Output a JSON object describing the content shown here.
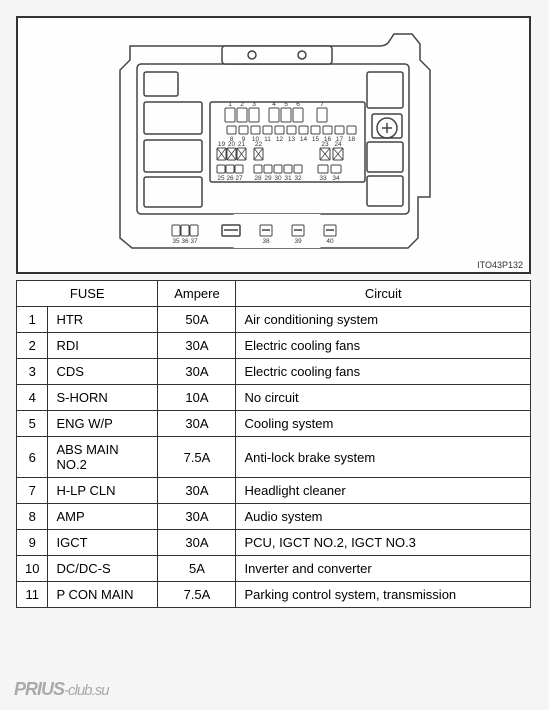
{
  "diagram_code": "ITO43P132",
  "table": {
    "headers": {
      "fuse": "FUSE",
      "ampere": "Ampere",
      "circuit": "Circuit"
    },
    "rows": [
      {
        "n": "1",
        "fuse": "HTR",
        "amp": "50A",
        "circ": "Air conditioning system"
      },
      {
        "n": "2",
        "fuse": "RDI",
        "amp": "30A",
        "circ": "Electric cooling fans"
      },
      {
        "n": "3",
        "fuse": "CDS",
        "amp": "30A",
        "circ": "Electric cooling fans"
      },
      {
        "n": "4",
        "fuse": "S-HORN",
        "amp": "10A",
        "circ": "No circuit"
      },
      {
        "n": "5",
        "fuse": "ENG W/P",
        "amp": "30A",
        "circ": "Cooling system"
      },
      {
        "n": "6",
        "fuse": "ABS MAIN NO.2",
        "amp": "7.5A",
        "circ": "Anti-lock brake system"
      },
      {
        "n": "7",
        "fuse": "H-LP CLN",
        "amp": "30A",
        "circ": "Headlight cleaner"
      },
      {
        "n": "8",
        "fuse": "AMP",
        "amp": "30A",
        "circ": "Audio system"
      },
      {
        "n": "9",
        "fuse": "IGCT",
        "amp": "30A",
        "circ": "PCU, IGCT NO.2, IGCT NO.3"
      },
      {
        "n": "10",
        "fuse": "DC/DC-S",
        "amp": "5A",
        "circ": "Inverter and converter"
      },
      {
        "n": "11",
        "fuse": "P CON MAIN",
        "amp": "7.5A",
        "circ": "Parking control system, transmission"
      }
    ]
  },
  "watermark": {
    "brand": "PRIUS",
    "suffix": "-club.su"
  },
  "diagram_labels": {
    "row1": [
      "1",
      "2",
      "3",
      "4",
      "5",
      "6",
      "7"
    ],
    "row2": [
      "8",
      "9",
      "10",
      "11",
      "12",
      "13",
      "14",
      "15",
      "16",
      "17",
      "18"
    ],
    "row3a": [
      "19",
      "20",
      "21"
    ],
    "row3b": [
      "22"
    ],
    "row3c": [
      "23",
      "24"
    ],
    "row4a": [
      "25",
      "26",
      "27"
    ],
    "row4b": [
      "28",
      "29",
      "30",
      "31",
      "32"
    ],
    "row4c": [
      "33",
      "34"
    ],
    "row5a": [
      "35",
      "36",
      "37"
    ],
    "row5b": [
      "38",
      "39",
      "40"
    ]
  },
  "colors": {
    "stroke": "#444",
    "fill": "#fefefe",
    "text": "#333"
  }
}
